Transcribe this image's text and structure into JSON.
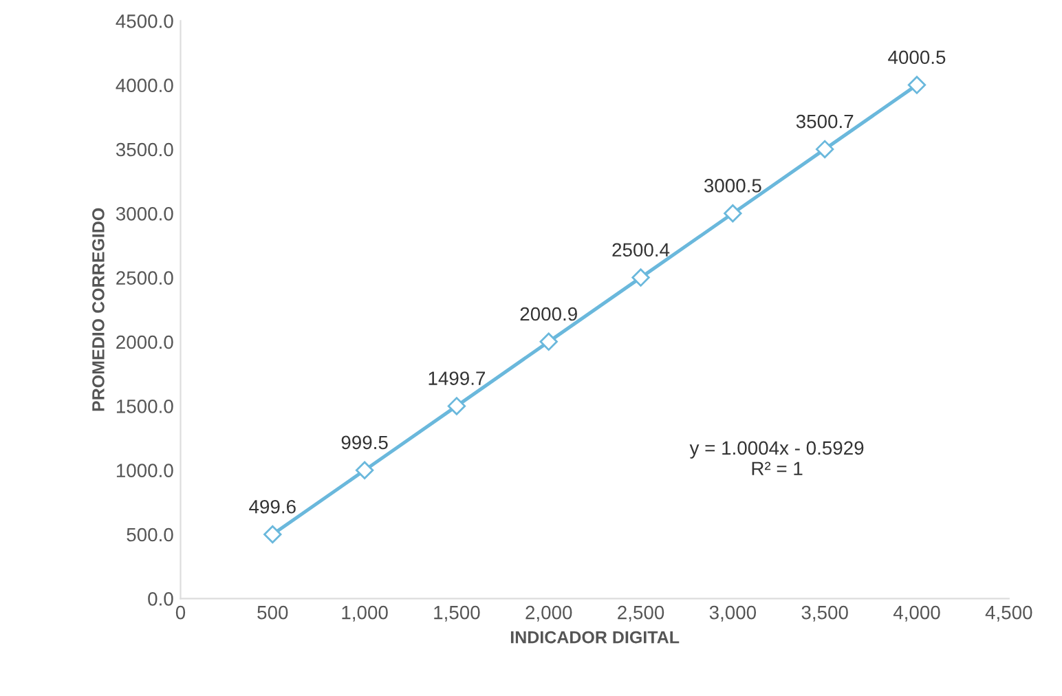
{
  "chart_data": {
    "type": "line",
    "xlabel": "INDICADOR DIGITAL",
    "ylabel": "PROMEDIO CORREGIDO",
    "x": [
      500,
      1000,
      1500,
      2000,
      2500,
      3000,
      3500,
      4000
    ],
    "series": [
      {
        "color": "#6ab8dc",
        "values": [
          499.6,
          999.5,
          1499.7,
          2000.9,
          2500.4,
          3000.5,
          3500.7,
          4000.5
        ]
      }
    ],
    "data_labels": true,
    "marker": "diamond",
    "line_style": "solid",
    "grid": false,
    "xlim": [
      0,
      4500
    ],
    "ylim": [
      0,
      4500
    ],
    "xticks": [
      {
        "value": 0,
        "label": "0"
      },
      {
        "value": 500,
        "label": "500"
      },
      {
        "value": 1000,
        "label": "1,000"
      },
      {
        "value": 1500,
        "label": "1,500"
      },
      {
        "value": 2000,
        "label": "2,000"
      },
      {
        "value": 2500,
        "label": "2,500"
      },
      {
        "value": 3000,
        "label": "3,000"
      },
      {
        "value": 3500,
        "label": "3,500"
      },
      {
        "value": 4000,
        "label": "4,000"
      },
      {
        "value": 4500,
        "label": "4,500"
      }
    ],
    "yticks": [
      {
        "value": 0,
        "label": "0.0"
      },
      {
        "value": 500,
        "label": "500.0"
      },
      {
        "value": 1000,
        "label": "1000.0"
      },
      {
        "value": 1500,
        "label": "1500.0"
      },
      {
        "value": 2000,
        "label": "2000.0"
      },
      {
        "value": 2500,
        "label": "2500.0"
      },
      {
        "value": 3000,
        "label": "3000.0"
      },
      {
        "value": 3500,
        "label": "3500.0"
      },
      {
        "value": 4000,
        "label": "4000.0"
      },
      {
        "value": 4500,
        "label": "4500.0"
      }
    ],
    "annotations": [
      "y = 1.0004x - 0.5929\nR² = 1"
    ]
  }
}
